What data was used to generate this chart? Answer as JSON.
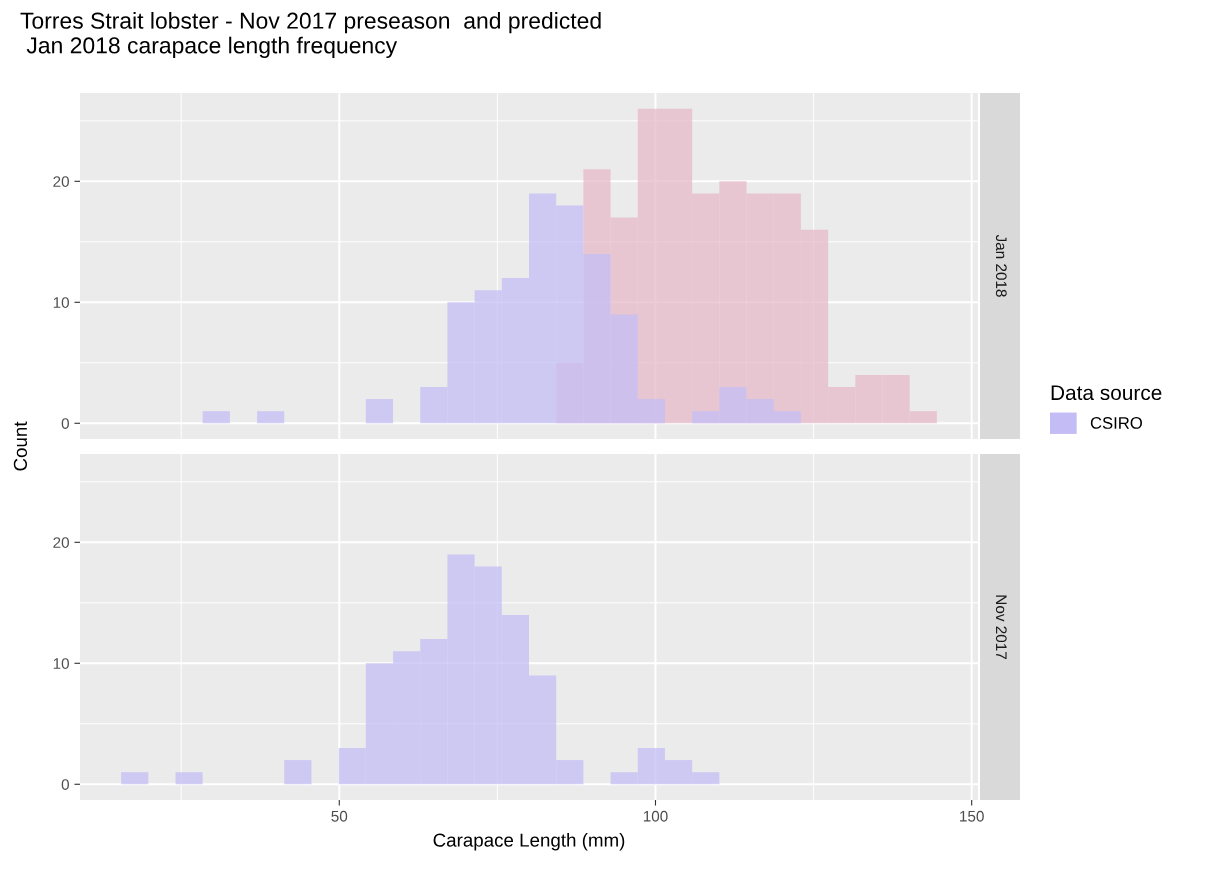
{
  "chart_data": [
    {
      "type": "histogram",
      "title": "Torres Strait lobster - Nov 2017 preseason  and predicted\n Jan 2018 carapace length frequency",
      "ylabel": "Count",
      "legend_title": "Data source",
      "legend": "right",
      "annotations": [
        "Jan 2018"
      ],
      "grid": true,
      "tick_labels": "y",
      "bins": [
        15.5,
        19.8,
        24.1,
        28.4,
        32.7,
        37.0,
        41.3,
        45.6,
        49.9,
        54.2,
        58.5,
        62.8,
        67.1,
        71.4,
        75.7,
        80.0,
        84.3,
        88.6,
        92.9,
        97.2,
        101.5,
        105.8,
        110.1,
        114.4,
        118.7,
        123.0,
        127.3,
        131.6,
        135.9,
        140.2,
        144.5
      ],
      "series": [
        {
          "name": "CSIRO",
          "color": "#c4bdf5",
          "values": [
            0,
            0,
            0,
            1,
            0,
            1,
            0,
            0,
            0,
            2,
            0,
            3,
            10,
            11,
            12,
            19,
            18,
            14,
            9,
            2,
            0,
            1,
            3,
            2,
            1,
            0,
            0,
            0,
            0,
            0
          ]
        },
        {
          "color": "#e5b9c9",
          "values": [
            0,
            0,
            0,
            0,
            0,
            0,
            0,
            0,
            0,
            0,
            0,
            0,
            0,
            0,
            0,
            0,
            5,
            21,
            17,
            26,
            26,
            19,
            20,
            19,
            19,
            16,
            3,
            4,
            4,
            1
          ]
        }
      ],
      "xlim": [
        9,
        151
      ],
      "xticks": [
        50,
        100,
        150
      ],
      "ylim": [
        -1.3,
        27.3
      ],
      "yticks": [
        0,
        10,
        20
      ]
    },
    {
      "type": "histogram",
      "xlabel": "Carapace Length (mm)",
      "annotations": [
        "Nov 2017"
      ],
      "grid": true,
      "bins": [
        15.5,
        19.8,
        24.1,
        28.4,
        32.7,
        37.0,
        41.3,
        45.6,
        49.9,
        54.2,
        58.5,
        62.8,
        67.1,
        71.4,
        75.7,
        80.0,
        84.3,
        88.6,
        92.9,
        97.2,
        101.5,
        105.8,
        110.1,
        114.4,
        118.7,
        123.0,
        127.3,
        131.6,
        135.9,
        140.2,
        144.5
      ],
      "series": [
        {
          "name": "CSIRO",
          "color": "#c4bdf5",
          "values": [
            1,
            0,
            1,
            0,
            0,
            0,
            2,
            0,
            3,
            10,
            11,
            12,
            19,
            18,
            14,
            9,
            2,
            0,
            1,
            3,
            2,
            1,
            0,
            0,
            0,
            0,
            0,
            0,
            0,
            0
          ]
        }
      ],
      "xlim": [
        9,
        151
      ],
      "xticks": [
        50,
        100,
        150
      ],
      "ylim": [
        -1.3,
        27.3
      ],
      "yticks": [
        0,
        10,
        20
      ]
    }
  ]
}
